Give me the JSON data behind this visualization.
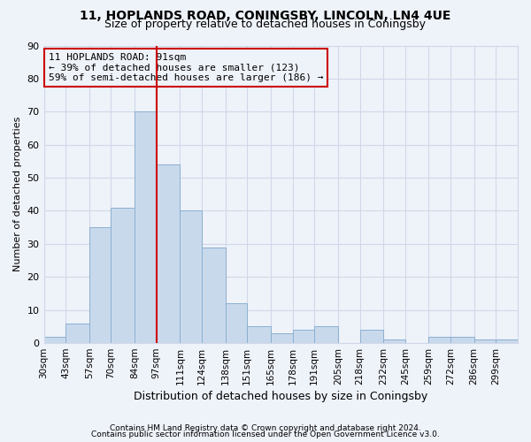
{
  "title1": "11, HOPLANDS ROAD, CONINGSBY, LINCOLN, LN4 4UE",
  "title2": "Size of property relative to detached houses in Coningsby",
  "xlabel": "Distribution of detached houses by size in Coningsby",
  "ylabel": "Number of detached properties",
  "footnote1": "Contains HM Land Registry data © Crown copyright and database right 2024.",
  "footnote2": "Contains public sector information licensed under the Open Government Licence v3.0.",
  "annotation_line1": "11 HOPLANDS ROAD: 91sqm",
  "annotation_line2": "← 39% of detached houses are smaller (123)",
  "annotation_line3": "59% of semi-detached houses are larger (186) →",
  "bar_color": "#c9d9ec",
  "bar_edge_color": "#8ab0d0",
  "vline_color": "#cc0000",
  "grid_color": "#d0d8e8",
  "bg_color": "#eef2f9",
  "categories": [
    "30sqm",
    "43sqm",
    "57sqm",
    "70sqm",
    "84sqm",
    "97sqm",
    "111sqm",
    "124sqm",
    "138sqm",
    "151sqm",
    "165sqm",
    "178sqm",
    "191sqm",
    "205sqm",
    "218sqm",
    "232sqm",
    "245sqm",
    "259sqm",
    "272sqm",
    "286sqm",
    "299sqm"
  ],
  "values": [
    2,
    6,
    35,
    41,
    70,
    54,
    40,
    29,
    12,
    5,
    3,
    4,
    5,
    0,
    4,
    1,
    0,
    2,
    2,
    1,
    1
  ],
  "bin_edges": [
    30,
    43,
    57,
    70,
    84,
    97,
    111,
    124,
    138,
    151,
    165,
    178,
    191,
    205,
    218,
    232,
    245,
    259,
    272,
    286,
    299,
    312
  ],
  "ylim": [
    0,
    90
  ],
  "yticks": [
    0,
    10,
    20,
    30,
    40,
    50,
    60,
    70,
    80,
    90
  ],
  "vline_x": 97,
  "title1_fontsize": 10,
  "title2_fontsize": 9,
  "ylabel_fontsize": 8,
  "xlabel_fontsize": 9,
  "footnote_fontsize": 6.5,
  "annot_fontsize": 8
}
